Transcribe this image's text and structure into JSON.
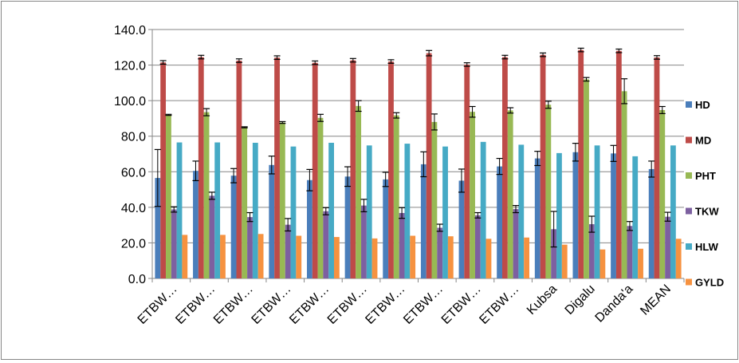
{
  "chart_data": {
    "type": "bar",
    "title": "",
    "xlabel": "",
    "ylabel": "",
    "ylim": [
      0,
      140
    ],
    "yticks": [
      "0.0",
      "20.0",
      "40.0",
      "60.0",
      "80.0",
      "100.0",
      "120.0",
      "140.0"
    ],
    "grid": true,
    "legend_position": "right",
    "error_bars": true,
    "categories": [
      "ETBW…",
      "ETBW…",
      "ETBW…",
      "ETBW…",
      "ETBW…",
      "ETBW…",
      "ETBW…",
      "ETBW…",
      "ETBW…",
      "ETBW…",
      "Kubsa",
      "Digalu",
      "Danda'a",
      "MEAN"
    ],
    "series": [
      {
        "name": "HD",
        "color": "#4a7ebb",
        "values": [
          56.5,
          60.5,
          57.8,
          63.8,
          55.3,
          57.3,
          55.7,
          64.2,
          55.0,
          63.0,
          67.5,
          71.0,
          70.3,
          61.5
        ],
        "errors": [
          16.0,
          5.5,
          4.0,
          5.0,
          6.0,
          5.5,
          4.0,
          7.0,
          6.5,
          4.5,
          4.0,
          5.0,
          4.5,
          4.5
        ]
      },
      {
        "name": "MD",
        "color": "#be4b48",
        "values": [
          121.5,
          124.5,
          122.5,
          124.2,
          121.3,
          122.7,
          122.0,
          126.7,
          120.3,
          124.5,
          125.8,
          128.5,
          128.0,
          124.3
        ],
        "errors": [
          1.0,
          1.0,
          1.0,
          1.0,
          1.0,
          1.0,
          1.0,
          1.5,
          1.0,
          1.0,
          1.0,
          1.0,
          1.0,
          1.0
        ]
      },
      {
        "name": "PHT",
        "color": "#98b954",
        "values": [
          92.0,
          93.5,
          85.0,
          87.7,
          90.3,
          97.0,
          91.7,
          88.0,
          93.7,
          94.5,
          97.7,
          112.0,
          105.3,
          94.7
        ],
        "errors": [
          0.3,
          2.0,
          0.3,
          0.5,
          2.0,
          3.0,
          1.5,
          4.5,
          3.0,
          1.5,
          2.0,
          1.0,
          7.0,
          2.0
        ]
      },
      {
        "name": "TKW",
        "color": "#7d60a0",
        "values": [
          38.8,
          46.5,
          34.5,
          30.2,
          37.8,
          41.0,
          36.8,
          28.5,
          35.5,
          39.0,
          27.7,
          30.5,
          29.5,
          34.7
        ],
        "errors": [
          1.5,
          2.0,
          2.5,
          3.5,
          2.0,
          3.5,
          3.0,
          2.0,
          1.5,
          2.0,
          10.0,
          4.5,
          2.5,
          2.5
        ]
      },
      {
        "name": "HLW",
        "color": "#46aac5",
        "values": [
          76.5,
          76.5,
          76.3,
          74.2,
          76.3,
          74.8,
          75.8,
          74.2,
          76.8,
          75.2,
          70.5,
          74.8,
          68.7,
          74.8
        ],
        "errors": [
          0,
          0,
          0,
          0,
          0,
          0,
          0,
          0,
          0,
          0,
          0,
          0,
          0,
          0
        ]
      },
      {
        "name": "GYLD",
        "color": "#f69240",
        "values": [
          24.5,
          24.5,
          25.0,
          24.0,
          23.3,
          22.5,
          24.0,
          23.7,
          22.3,
          23.0,
          19.0,
          16.3,
          16.7,
          22.3
        ],
        "errors": [
          0,
          0,
          0,
          0,
          0,
          0,
          0,
          0,
          0,
          0,
          0,
          0,
          0,
          0
        ]
      }
    ]
  }
}
